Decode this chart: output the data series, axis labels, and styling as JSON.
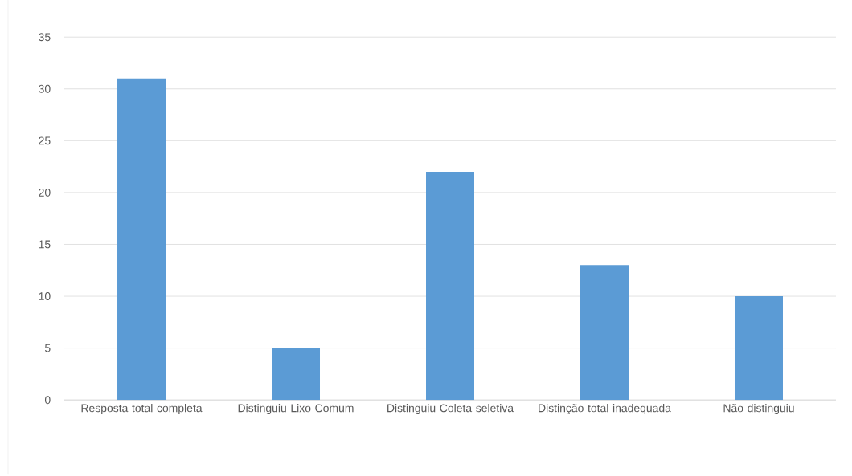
{
  "chart_data": {
    "type": "bar",
    "categories": [
      "Resposta total completa",
      "Distinguiu Lixo Comum",
      "Distinguiu Coleta seletiva",
      "Distinção total inadequada",
      "Não distinguiu"
    ],
    "values": [
      31,
      5,
      22,
      13,
      10
    ],
    "color": "#5b9bd5",
    "ylim": [
      0,
      35
    ],
    "yticks": [
      0,
      5,
      10,
      15,
      20,
      25,
      30,
      35
    ],
    "grid": "y"
  }
}
